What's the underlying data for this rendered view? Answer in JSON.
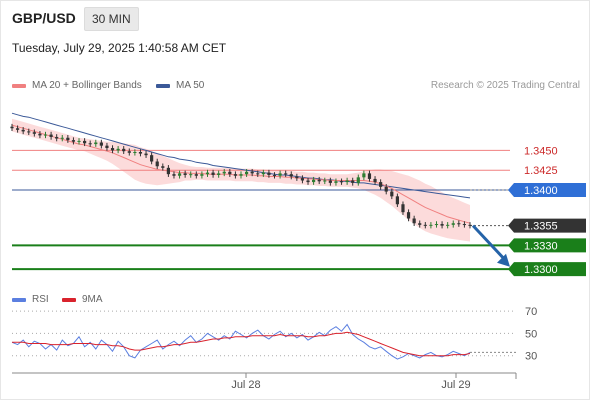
{
  "header": {
    "symbol": "GBP/USD",
    "timeframe": "30 MIN"
  },
  "timestamp": "Tuesday, July 29, 2025 1:40:58 AM CET",
  "legend": {
    "ma20_label": "MA 20 + Bollinger Bands",
    "ma50_label": "MA 50",
    "copyright": "Research © 2025 Trading Central"
  },
  "rsi_legend": {
    "rsi_label": "RSI",
    "ma_label": "9MA"
  },
  "colors": {
    "ma20": "#f08080",
    "bollinger_fill": "#fbd5d5",
    "ma50": "#3b5998",
    "candle_up": "#2e7d32",
    "candle_down": "#333333",
    "support": "#1a7f1a",
    "resistance": "#f08080",
    "rsi": "#5b7fe0",
    "rsi_ma": "#d9232d",
    "arrow": "#2563a8"
  },
  "chart_data": {
    "type": "candlestick",
    "price_levels": [
      {
        "value": 1.345,
        "label": "1.3450",
        "kind": "resistance"
      },
      {
        "value": 1.3425,
        "label": "1.3425",
        "kind": "resistance"
      },
      {
        "value": 1.34,
        "label": "1.3400",
        "kind": "pivot"
      },
      {
        "value": 1.3355,
        "label": "1.3355",
        "kind": "last"
      },
      {
        "value": 1.333,
        "label": "1.3330",
        "kind": "support"
      },
      {
        "value": 1.33,
        "label": "1.3300",
        "kind": "support"
      }
    ],
    "x_ticks": [
      "Jul 28",
      "Jul 29"
    ],
    "close": [
      1.3478,
      1.3476,
      1.3474,
      1.3473,
      1.3471,
      1.3469,
      1.347,
      1.3467,
      1.3465,
      1.3466,
      1.3463,
      1.3461,
      1.3462,
      1.3459,
      1.3458,
      1.346,
      1.3456,
      1.3453,
      1.345,
      1.3452,
      1.3449,
      1.3447,
      1.3448,
      1.3446,
      1.3444,
      1.3436,
      1.343,
      1.3428,
      1.342,
      1.3418,
      1.3421,
      1.3419,
      1.342,
      1.3418,
      1.342,
      1.3422,
      1.3419,
      1.3421,
      1.3423,
      1.342,
      1.3418,
      1.342,
      1.3423,
      1.3421,
      1.342,
      1.3422,
      1.3419,
      1.3418,
      1.3421,
      1.342,
      1.3417,
      1.3415,
      1.3412,
      1.341,
      1.3413,
      1.3411,
      1.3412,
      1.3409,
      1.3411,
      1.341,
      1.3412,
      1.3409,
      1.3416,
      1.3421,
      1.3414,
      1.341,
      1.3404,
      1.3398,
      1.3392,
      1.3382,
      1.3372,
      1.3364,
      1.3358,
      1.3356,
      1.3355,
      1.3356,
      1.3357,
      1.3355,
      1.3356,
      1.3358,
      1.3357,
      1.3356,
      1.3355
    ],
    "ma20": [
      1.3482,
      1.348,
      1.3478,
      1.3476,
      1.3474,
      1.3472,
      1.347,
      1.3468,
      1.3466,
      1.3464,
      1.3462,
      1.346,
      1.3458,
      1.3457,
      1.3455,
      1.3453,
      1.3451,
      1.3449,
      1.3447,
      1.3444,
      1.3441,
      1.3438,
      1.3435,
      1.3432,
      1.343,
      1.3428,
      1.3426,
      1.3425,
      1.3424,
      1.3423,
      1.3422,
      1.3422,
      1.3421,
      1.3421,
      1.3421,
      1.342,
      1.342,
      1.342,
      1.342,
      1.342,
      1.3419,
      1.3419,
      1.3419,
      1.3419,
      1.3418,
      1.3418,
      1.3417,
      1.3417,
      1.3417,
      1.3416,
      1.3416,
      1.3415,
      1.3415,
      1.3414,
      1.3414,
      1.3413,
      1.3413,
      1.3412,
      1.3412,
      1.3412,
      1.3412,
      1.3412,
      1.3412,
      1.3412,
      1.3411,
      1.341,
      1.3408,
      1.3405,
      1.3402,
      1.3398,
      1.3394,
      1.339,
      1.3386,
      1.3382,
      1.3378,
      1.3375,
      1.3372,
      1.3369,
      1.3366,
      1.3364,
      1.3362,
      1.336,
      1.3358
    ],
    "ma50": [
      1.3497,
      1.3495,
      1.3493,
      1.3492,
      1.349,
      1.3488,
      1.3486,
      1.3484,
      1.3482,
      1.348,
      1.3478,
      1.3476,
      1.3474,
      1.3472,
      1.347,
      1.3468,
      1.3466,
      1.3464,
      1.3462,
      1.346,
      1.3458,
      1.3456,
      1.3454,
      1.3452,
      1.345,
      1.3448,
      1.3446,
      1.3444,
      1.3442,
      1.3441,
      1.3439,
      1.3438,
      1.3437,
      1.3435,
      1.3434,
      1.3433,
      1.3431,
      1.343,
      1.3429,
      1.3428,
      1.3427,
      1.3426,
      1.3425,
      1.3424,
      1.3423,
      1.3422,
      1.3421,
      1.342,
      1.3419,
      1.3419,
      1.3418,
      1.3417,
      1.3416,
      1.3415,
      1.3415,
      1.3414,
      1.3413,
      1.3413,
      1.3412,
      1.3411,
      1.3411,
      1.341,
      1.3409,
      1.3409,
      1.3408,
      1.3407,
      1.3406,
      1.3405,
      1.3404,
      1.3403,
      1.3402,
      1.3401,
      1.34,
      1.3399,
      1.3398,
      1.3397,
      1.3396,
      1.3395,
      1.3394,
      1.3393,
      1.3392,
      1.3391,
      1.339
    ],
    "bb_width": [
      0.0008,
      0.0008,
      0.0008,
      0.0008,
      0.0008,
      0.0008,
      0.0008,
      0.0008,
      0.0008,
      0.0008,
      0.0008,
      0.0008,
      0.0008,
      0.0008,
      0.0009,
      0.001,
      0.0011,
      0.0012,
      0.0014,
      0.0016,
      0.0018,
      0.002,
      0.0022,
      0.0022,
      0.0022,
      0.0021,
      0.002,
      0.0018,
      0.0016,
      0.0014,
      0.0012,
      0.001,
      0.0009,
      0.0008,
      0.0008,
      0.0008,
      0.0008,
      0.0008,
      0.0008,
      0.0008,
      0.0008,
      0.0008,
      0.0008,
      0.0008,
      0.0008,
      0.0008,
      0.0008,
      0.0008,
      0.0008,
      0.0008,
      0.0008,
      0.0008,
      0.0008,
      0.0008,
      0.0008,
      0.0008,
      0.0008,
      0.0008,
      0.0008,
      0.0008,
      0.0008,
      0.0009,
      0.001,
      0.0012,
      0.0014,
      0.0016,
      0.0018,
      0.002,
      0.0022,
      0.0024,
      0.0026,
      0.0028,
      0.0029,
      0.003,
      0.003,
      0.003,
      0.0029,
      0.0028,
      0.0027,
      0.0026,
      0.0025,
      0.0024,
      0.0023
    ],
    "rsi_ticks": [
      70,
      50,
      30
    ],
    "rsi": [
      42,
      40,
      44,
      38,
      43,
      41,
      36,
      40,
      35,
      44,
      39,
      41,
      47,
      38,
      42,
      36,
      44,
      40,
      34,
      43,
      38,
      30,
      28,
      35,
      38,
      41,
      44,
      36,
      40,
      43,
      39,
      44,
      48,
      42,
      45,
      50,
      47,
      44,
      48,
      45,
      52,
      49,
      46,
      50,
      53,
      48,
      45,
      49,
      52,
      47,
      50,
      46,
      49,
      44,
      47,
      51,
      48,
      53,
      56,
      52,
      58,
      49,
      45,
      42,
      38,
      36,
      38,
      34,
      30,
      27,
      29,
      32,
      30,
      28,
      31,
      33,
      30,
      29,
      31,
      34,
      32,
      30,
      33
    ],
    "rsi_ma": [
      42,
      42,
      42,
      41,
      41,
      41,
      41,
      40,
      40,
      40,
      40,
      41,
      41,
      41,
      41,
      40,
      40,
      40,
      39,
      39,
      38,
      36,
      35,
      35,
      36,
      37,
      38,
      38,
      39,
      40,
      40,
      41,
      42,
      42,
      43,
      44,
      45,
      45,
      46,
      46,
      47,
      47,
      47,
      48,
      48,
      48,
      48,
      48,
      49,
      48,
      48,
      48,
      48,
      47,
      47,
      48,
      48,
      49,
      50,
      50,
      51,
      50,
      49,
      47,
      45,
      43,
      41,
      39,
      37,
      35,
      33,
      32,
      31,
      30,
      30,
      30,
      30,
      30,
      30,
      31,
      31,
      31,
      32
    ]
  }
}
